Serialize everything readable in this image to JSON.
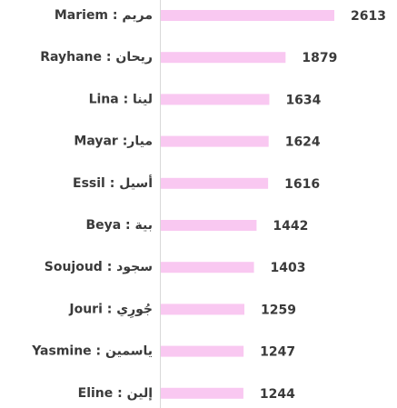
{
  "chart_data": {
    "type": "bar",
    "orientation": "horizontal",
    "categories": [
      "Mariem : مريم",
      "Rayhane : ريحان",
      "Lina : لينا",
      "Mayar :ميار",
      "Essil : أسيل",
      "Beya : بية",
      "Soujoud : سجود",
      "Jouri : جُورِي",
      "Yasmine : ياسمين",
      "Eline : إلين"
    ],
    "values": [
      2613,
      1879,
      1634,
      1624,
      1616,
      1442,
      1403,
      1259,
      1247,
      1244
    ],
    "color": "#f9c8f1"
  }
}
